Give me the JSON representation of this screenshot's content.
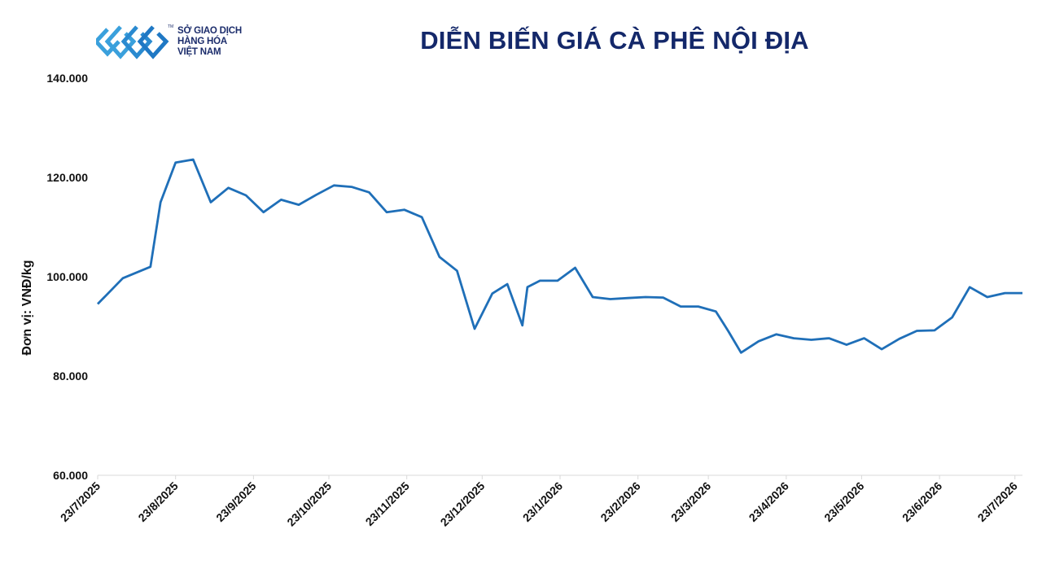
{
  "brand": {
    "lines": [
      "SỞ GIAO DỊCH",
      "HÀNG HÓA",
      "VIỆT NAM"
    ],
    "tm": "TM",
    "colors": [
      "#3aa0dc",
      "#1f78c4"
    ]
  },
  "chart_data": {
    "type": "line",
    "title": "DIỄN BIẾN GIÁ CÀ PHÊ NỘI ĐỊA",
    "xlabel": "",
    "ylabel": "Đơn vị: VNĐ/kg",
    "ylim": [
      60000,
      140000
    ],
    "yticks": [
      60000,
      80000,
      100000,
      120000,
      140000
    ],
    "ytick_labels": [
      "60.000",
      "80.000",
      "100.000",
      "120.000",
      "140.000"
    ],
    "xlim": [
      "2025-07-23",
      "2026-07-26"
    ],
    "xticks": [
      "2025-07-23",
      "2025-08-23",
      "2025-09-23",
      "2025-10-23",
      "2025-11-23",
      "2025-12-23",
      "2026-01-23",
      "2026-02-23",
      "2026-03-23",
      "2026-04-23",
      "2026-05-23",
      "2026-06-23",
      "2026-07-23"
    ],
    "xtick_labels": [
      "23/7/2025",
      "23/8/2025",
      "23/9/2025",
      "23/10/2025",
      "23/11/2025",
      "23/12/2025",
      "23/1/2026",
      "23/2/2026",
      "23/3/2026",
      "23/4/2026",
      "23/5/2026",
      "23/6/2026",
      "23/7/2026"
    ],
    "grid": false,
    "line_color": "#1f6fb8",
    "series": [
      {
        "x": [
          "2025-07-23",
          "2025-08-02",
          "2025-08-13",
          "2025-08-17",
          "2025-08-23",
          "2025-08-30",
          "2025-09-06",
          "2025-09-13",
          "2025-09-20",
          "2025-09-27",
          "2025-10-04",
          "2025-10-11",
          "2025-10-18",
          "2025-10-25",
          "2025-11-01",
          "2025-11-08",
          "2025-11-15",
          "2025-11-22",
          "2025-11-29",
          "2025-12-06",
          "2025-12-13",
          "2025-12-20",
          "2025-12-27",
          "2026-01-02",
          "2026-01-08",
          "2026-01-10",
          "2026-01-15",
          "2026-01-22",
          "2026-01-29",
          "2026-02-05",
          "2026-02-12",
          "2026-02-19",
          "2026-02-26",
          "2026-03-05",
          "2026-03-12",
          "2026-03-19",
          "2026-03-26",
          "2026-03-31",
          "2026-04-05",
          "2026-04-12",
          "2026-04-19",
          "2026-04-26",
          "2026-05-03",
          "2026-05-10",
          "2026-05-17",
          "2026-05-24",
          "2026-05-31",
          "2026-06-07",
          "2026-06-14",
          "2026-06-21",
          "2026-06-28",
          "2026-07-05",
          "2026-07-12",
          "2026-07-19",
          "2026-07-26"
        ],
        "values": [
          94500,
          99700,
          102000,
          115000,
          123000,
          123600,
          115000,
          117900,
          116400,
          113000,
          115500,
          114500,
          116500,
          118400,
          118100,
          117000,
          113000,
          113500,
          112000,
          104000,
          101200,
          89500,
          96600,
          98500,
          90200,
          97900,
          99200,
          99200,
          101800,
          95900,
          95500,
          95700,
          95900,
          95800,
          94000,
          94000,
          93000,
          89000,
          84700,
          87000,
          88400,
          87600,
          87300,
          87600,
          86300,
          87600,
          85400,
          87500,
          89100,
          89200,
          91800,
          97900,
          95900,
          96700,
          96700
        ]
      }
    ]
  }
}
